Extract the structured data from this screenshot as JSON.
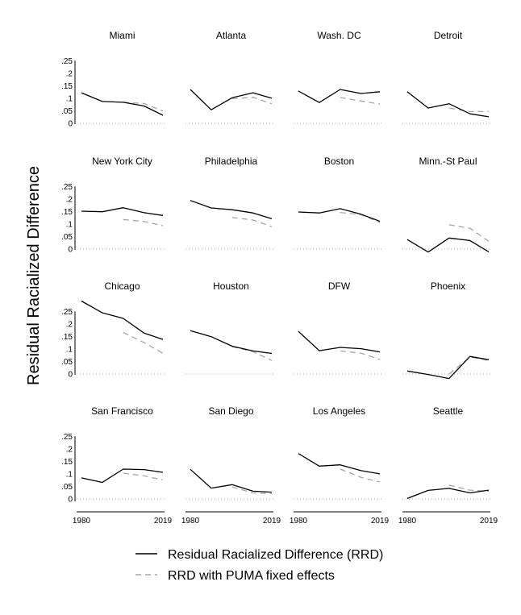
{
  "chart_data": {
    "type": "line",
    "ylabel": "Residual Racialized Difference",
    "ylim": [
      0,
      0.25
    ],
    "y_ticks": [
      "0",
      ".05",
      ".1",
      ".15",
      ".2",
      ".25"
    ],
    "x_ticks": [
      "1980",
      "2019"
    ],
    "x": [
      1980,
      1990,
      2000,
      2010,
      2019
    ],
    "colors": {
      "rrd": "#000000",
      "puma": "#a6a6a6"
    },
    "legend": {
      "position": "bottom",
      "entries": [
        "Residual Racialized Difference (RRD)",
        "RRD with PUMA fixed effects"
      ]
    },
    "panels": [
      {
        "name": "Miami",
        "rrd": [
          0.122,
          0.087,
          0.084,
          0.069,
          0.032
        ],
        "puma": [
          null,
          null,
          0.084,
          0.079,
          0.049
        ]
      },
      {
        "name": "Atlanta",
        "rrd": [
          0.135,
          0.054,
          0.102,
          0.122,
          0.1
        ],
        "puma": [
          null,
          null,
          0.098,
          0.104,
          0.078
        ]
      },
      {
        "name": "Wash. DC",
        "rrd": [
          0.129,
          0.083,
          0.135,
          0.119,
          0.126
        ],
        "puma": [
          null,
          null,
          0.103,
          0.089,
          0.077
        ]
      },
      {
        "name": "Detroit",
        "rrd": [
          0.126,
          0.061,
          0.078,
          0.038,
          0.026
        ],
        "puma": [
          null,
          null,
          0.061,
          0.047,
          0.047
        ]
      },
      {
        "name": "New York City",
        "rrd": [
          0.151,
          0.149,
          0.165,
          0.145,
          0.134
        ],
        "puma": [
          null,
          null,
          0.118,
          0.11,
          0.093
        ]
      },
      {
        "name": "Philadelphia",
        "rrd": [
          0.194,
          0.164,
          0.157,
          0.144,
          0.121
        ],
        "puma": [
          null,
          null,
          0.126,
          0.116,
          0.089
        ]
      },
      {
        "name": "Boston",
        "rrd": [
          0.148,
          0.144,
          0.161,
          0.139,
          0.111
        ],
        "puma": [
          null,
          null,
          0.146,
          0.137,
          0.106
        ]
      },
      {
        "name": "Minn.-St Paul",
        "rrd": [
          0.038,
          -0.012,
          0.044,
          0.034,
          -0.011
        ],
        "puma": [
          null,
          null,
          0.097,
          0.083,
          0.031
        ]
      },
      {
        "name": "Chicago",
        "rrd": [
          0.291,
          0.244,
          0.222,
          0.163,
          0.138
        ],
        "puma": [
          null,
          null,
          0.166,
          0.125,
          0.083
        ]
      },
      {
        "name": "Houston",
        "rrd": [
          0.173,
          0.149,
          0.111,
          0.092,
          0.082
        ],
        "puma": [
          null,
          null,
          0.109,
          0.089,
          0.054
        ]
      },
      {
        "name": "DFW",
        "rrd": [
          0.17,
          0.093,
          0.106,
          0.101,
          0.088
        ],
        "puma": [
          null,
          null,
          0.092,
          0.083,
          0.058
        ]
      },
      {
        "name": "Phoenix",
        "rrd": [
          0.012,
          -0.002,
          -0.018,
          0.07,
          0.057
        ],
        "puma": [
          null,
          null,
          0.0,
          0.068,
          0.055
        ]
      },
      {
        "name": "San Francisco",
        "rrd": [
          0.084,
          0.066,
          0.119,
          0.117,
          0.106
        ],
        "puma": [
          null,
          null,
          0.103,
          0.092,
          0.076
        ]
      },
      {
        "name": "San Diego",
        "rrd": [
          0.118,
          0.043,
          0.057,
          0.031,
          0.027
        ],
        "puma": [
          null,
          null,
          0.048,
          0.024,
          0.021
        ]
      },
      {
        "name": "Los Angeles",
        "rrd": [
          0.181,
          0.131,
          0.136,
          0.113,
          0.1
        ],
        "puma": [
          null,
          null,
          0.119,
          0.086,
          0.068
        ]
      },
      {
        "name": "Seattle",
        "rrd": [
          0.002,
          0.034,
          0.042,
          0.024,
          0.035
        ],
        "puma": [
          null,
          null,
          0.055,
          0.035,
          0.031
        ]
      }
    ]
  }
}
